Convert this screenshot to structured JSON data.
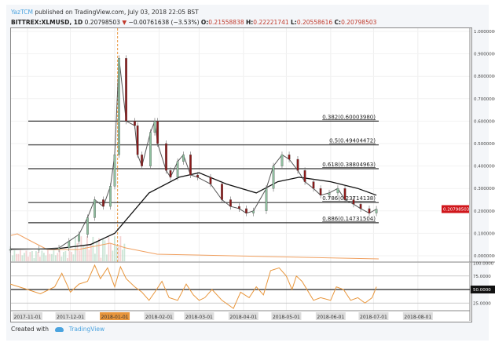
{
  "header": {
    "user": "YazTCM",
    "published_text": "published on TradingView.com, July 03, 2018 22:05 BST",
    "symbol": "BITTREX:XLMUSD, 1D",
    "last": "0.20798503",
    "change_arrow": "▼",
    "change": "−0.00761638 (−3.53%)",
    "open_label": "O:",
    "open": "0.21558838",
    "high_label": "H:",
    "high": "0.22221741",
    "low_label": "L:",
    "low": "0.20558616",
    "close_label": "C:",
    "close": "0.20798503"
  },
  "footer": {
    "created_with": "Created with",
    "brand": "TradingView",
    "brand_icon": "tradingview-cloud-logo"
  },
  "colors": {
    "up": "#8fbf9f",
    "down": "#8b1a1a",
    "price_line": "#555555",
    "ma_slow": "#111111",
    "rsi": "#e8963c",
    "current_price_bg": "#d0161b",
    "highlight_date": "#e8963c",
    "user_link": "#4aa3df"
  },
  "chart_data": [
    {
      "type": "line",
      "title": "",
      "price_axis_ticks": [
        "1.00000000",
        "0.90000000",
        "0.80000000",
        "0.70000000",
        "0.60000000",
        "0.50000000",
        "0.40000000",
        "0.30000000",
        "0.20000000",
        "0.10000000",
        "0.00000000"
      ],
      "ylim": [
        0,
        1
      ],
      "current_price_label": "0.20798503",
      "date_ticks": [
        "2017-11-01",
        "2017-12-01",
        "2018-01-01",
        "2018-02-01",
        "2018-03-01",
        "2018-04-01",
        "2018-05-01",
        "2018-06-01",
        "2018-07-01",
        "2018-08-01"
      ],
      "highlighted_date": "2018-01-01",
      "marker_date": "2018-01-03",
      "grid": true,
      "series": [
        {
          "kind": "price",
          "x": [
            "2017-10-20",
            "2017-11-09",
            "2017-11-23",
            "2017-11-30",
            "2017-12-07",
            "2017-12-13",
            "2017-12-18",
            "2017-12-24",
            "2017-12-29",
            "2018-01-01",
            "2018-01-04",
            "2018-01-09",
            "2018-01-15",
            "2018-01-17",
            "2018-01-20",
            "2018-01-26",
            "2018-01-29",
            "2018-01-31",
            "2018-02-06",
            "2018-02-09",
            "2018-02-14",
            "2018-02-18",
            "2018-02-23",
            "2018-02-28",
            "2018-03-09",
            "2018-03-17",
            "2018-03-23",
            "2018-03-29",
            "2018-04-03",
            "2018-04-08",
            "2018-04-17",
            "2018-04-22",
            "2018-04-28",
            "2018-05-03",
            "2018-05-09",
            "2018-05-14",
            "2018-05-20",
            "2018-05-25",
            "2018-05-31",
            "2018-06-06",
            "2018-06-11",
            "2018-06-17",
            "2018-06-22",
            "2018-06-28",
            "2018-07-03"
          ],
          "y": [
            0.028,
            0.03,
            0.035,
            0.065,
            0.095,
            0.17,
            0.25,
            0.22,
            0.31,
            0.45,
            0.88,
            0.6,
            0.58,
            0.45,
            0.4,
            0.55,
            0.6,
            0.5,
            0.38,
            0.35,
            0.42,
            0.45,
            0.36,
            0.35,
            0.32,
            0.25,
            0.22,
            0.21,
            0.19,
            0.2,
            0.3,
            0.4,
            0.45,
            0.43,
            0.38,
            0.33,
            0.3,
            0.27,
            0.28,
            0.3,
            0.25,
            0.23,
            0.21,
            0.19,
            0.208
          ]
        },
        {
          "kind": "moving-average",
          "x": [
            "2017-10-20",
            "2017-11-20",
            "2017-12-15",
            "2018-01-01",
            "2018-01-25",
            "2018-02-15",
            "2018-03-01",
            "2018-03-20",
            "2018-04-10",
            "2018-04-25",
            "2018-05-10",
            "2018-06-01",
            "2018-06-20",
            "2018-07-03"
          ],
          "y": [
            0.03,
            0.03,
            0.05,
            0.1,
            0.28,
            0.35,
            0.37,
            0.32,
            0.28,
            0.33,
            0.35,
            0.33,
            0.3,
            0.27
          ]
        }
      ],
      "fib_levels": [
        {
          "label": "0.382(0.60003980)",
          "value": 0.6000398
        },
        {
          "label": "0.5(0.49404472)",
          "value": 0.49404472
        },
        {
          "label": "0.618(0.38804963)",
          "value": 0.38804963
        },
        {
          "label": "0.786(0.23714138)",
          "value": 0.23714138
        },
        {
          "label": "0.886(0.14731504)",
          "value": 0.14731504
        }
      ]
    },
    {
      "type": "line",
      "title": "",
      "ylim": [
        0,
        100
      ],
      "rsi_axis_ticks": [
        "100.0000",
        "75.0000",
        "50.0000",
        "25.0000"
      ],
      "highlighted_tick": "50.0000",
      "bands": [
        25,
        50,
        75,
        100
      ],
      "series": [
        {
          "x": [
            "2017-10-20",
            "2017-11-01",
            "2017-11-10",
            "2017-11-20",
            "2017-11-25",
            "2017-12-01",
            "2017-12-07",
            "2017-12-13",
            "2017-12-18",
            "2017-12-22",
            "2017-12-27",
            "2018-01-01",
            "2018-01-05",
            "2018-01-09",
            "2018-01-15",
            "2018-01-20",
            "2018-01-25",
            "2018-01-29",
            "2018-02-03",
            "2018-02-08",
            "2018-02-14",
            "2018-02-20",
            "2018-02-25",
            "2018-03-01",
            "2018-03-05",
            "2018-03-10",
            "2018-03-17",
            "2018-03-25",
            "2018-03-30",
            "2018-04-05",
            "2018-04-10",
            "2018-04-15",
            "2018-04-20",
            "2018-04-26",
            "2018-05-01",
            "2018-05-05",
            "2018-05-08",
            "2018-05-12",
            "2018-05-20",
            "2018-05-25",
            "2018-06-01",
            "2018-06-05",
            "2018-06-10",
            "2018-06-15",
            "2018-06-20",
            "2018-06-25",
            "2018-06-30",
            "2018-07-03"
          ],
          "y": [
            60,
            50,
            42,
            55,
            80,
            45,
            60,
            65,
            95,
            70,
            90,
            55,
            92,
            70,
            55,
            45,
            30,
            45,
            65,
            35,
            30,
            60,
            40,
            30,
            35,
            50,
            30,
            15,
            45,
            35,
            55,
            40,
            85,
            90,
            75,
            50,
            75,
            65,
            30,
            35,
            30,
            55,
            50,
            30,
            35,
            25,
            35,
            55
          ]
        }
      ]
    }
  ]
}
